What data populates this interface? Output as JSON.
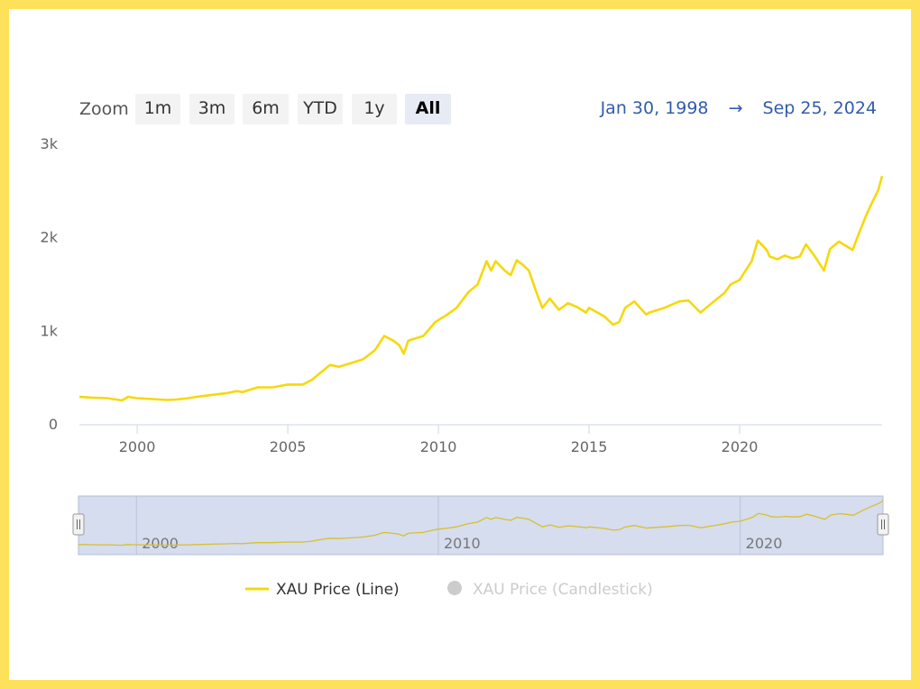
{
  "zoom": {
    "label": "Zoom",
    "buttons": [
      "1m",
      "3m",
      "6m",
      "YTD",
      "1y",
      "All"
    ],
    "active": "All"
  },
  "range": {
    "from": "Jan 30, 1998",
    "arrow": "→",
    "to": "Sep 25, 2024"
  },
  "colors": {
    "series": "#f5d90a",
    "navigator_mask": "#d5ddef",
    "legend_hidden": "#cccccc"
  },
  "legend": [
    {
      "label": "XAU Price (Line)",
      "visible": true,
      "icon": "line-icon"
    },
    {
      "label": "XAU Price (Candlestick)",
      "visible": false,
      "icon": "dot-icon"
    }
  ],
  "chart_data": {
    "type": "line",
    "title": "",
    "xlabel": "",
    "ylabel": "",
    "xlim": [
      1998.08,
      2024.73
    ],
    "ylim": [
      0,
      3000
    ],
    "y_ticks": [
      {
        "value": 0,
        "label": "0"
      },
      {
        "value": 1000,
        "label": "1k"
      },
      {
        "value": 2000,
        "label": "2k"
      },
      {
        "value": 3000,
        "label": "3k"
      }
    ],
    "x_ticks": [
      {
        "value": 2000,
        "label": "2000"
      },
      {
        "value": 2005,
        "label": "2005"
      },
      {
        "value": 2010,
        "label": "2010"
      },
      {
        "value": 2015,
        "label": "2015"
      },
      {
        "value": 2020,
        "label": "2020"
      }
    ],
    "navigator_ticks": [
      {
        "value": 2000,
        "label": "2000"
      },
      {
        "value": 2010,
        "label": "2010"
      },
      {
        "value": 2020,
        "label": "2020"
      }
    ],
    "grid": "none",
    "legend_position": "bottom",
    "series": [
      {
        "name": "XAU Price (Line)",
        "x": [
          1998.08,
          1998.5,
          1999.0,
          1999.5,
          1999.7,
          1999.85,
          2000.0,
          2000.5,
          2001.0,
          2001.3,
          2001.7,
          2002.0,
          2002.5,
          2003.0,
          2003.3,
          2003.5,
          2004.0,
          2004.5,
          2005.0,
          2005.5,
          2005.8,
          2006.1,
          2006.4,
          2006.7,
          2007.0,
          2007.5,
          2007.9,
          2008.2,
          2008.5,
          2008.7,
          2008.85,
          2009.0,
          2009.5,
          2009.9,
          2010.0,
          2010.3,
          2010.6,
          2011.0,
          2011.3,
          2011.6,
          2011.75,
          2011.9,
          2012.2,
          2012.4,
          2012.6,
          2012.8,
          2013.0,
          2013.25,
          2013.45,
          2013.7,
          2014.0,
          2014.3,
          2014.6,
          2014.9,
          2015.0,
          2015.5,
          2015.8,
          2016.0,
          2016.2,
          2016.5,
          2016.9,
          2017.0,
          2017.5,
          2018.0,
          2018.3,
          2018.7,
          2019.0,
          2019.5,
          2019.7,
          2020.0,
          2020.2,
          2020.4,
          2020.6,
          2020.9,
          2021.0,
          2021.25,
          2021.5,
          2021.75,
          2022.0,
          2022.2,
          2022.5,
          2022.8,
          2023.0,
          2023.3,
          2023.5,
          2023.75,
          2023.95,
          2024.2,
          2024.4,
          2024.6,
          2024.73
        ],
        "values": [
          300,
          290,
          285,
          260,
          300,
          290,
          285,
          275,
          265,
          270,
          285,
          300,
          320,
          340,
          360,
          350,
          400,
          400,
          430,
          430,
          480,
          560,
          640,
          620,
          650,
          700,
          800,
          950,
          900,
          850,
          760,
          900,
          950,
          1100,
          1120,
          1180,
          1250,
          1420,
          1500,
          1750,
          1650,
          1750,
          1650,
          1600,
          1760,
          1710,
          1650,
          1420,
          1250,
          1350,
          1230,
          1300,
          1260,
          1200,
          1250,
          1160,
          1070,
          1100,
          1250,
          1320,
          1180,
          1200,
          1250,
          1320,
          1330,
          1200,
          1280,
          1410,
          1500,
          1550,
          1650,
          1750,
          1970,
          1870,
          1800,
          1770,
          1810,
          1780,
          1800,
          1930,
          1800,
          1650,
          1880,
          1960,
          1920,
          1870,
          2040,
          2240,
          2380,
          2510,
          2660
        ]
      }
    ]
  }
}
